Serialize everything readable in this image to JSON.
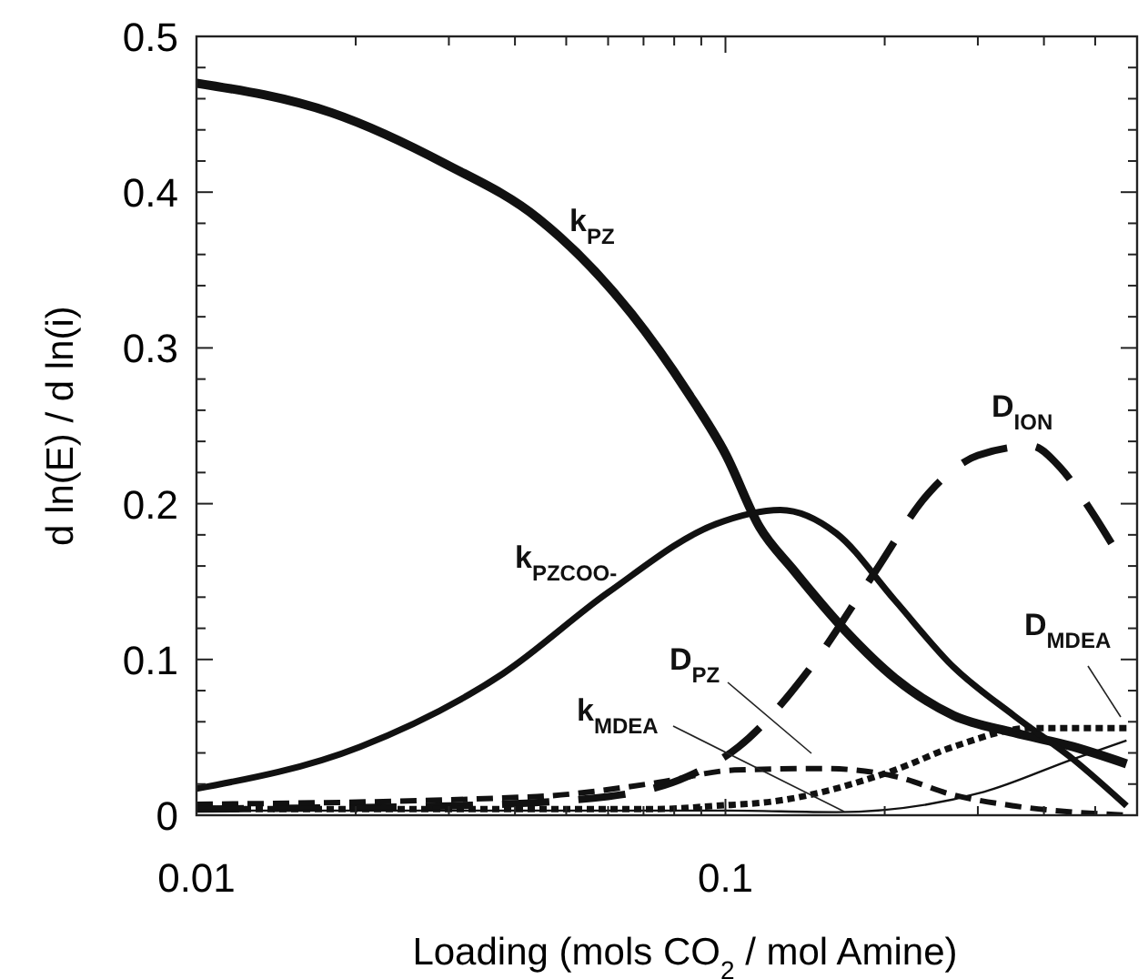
{
  "chart_data": {
    "type": "line",
    "xlabel": "Loading (mols CO$_{2}$ / mol Amine)",
    "ylabel": "d ln(E) / d ln(i)",
    "log": "x",
    "xlim": [
      0.01,
      0.6
    ],
    "ylim": [
      0,
      0.5
    ],
    "xticks": [
      0.01,
      {
        "value": 0.02,
        "label": null
      },
      {
        "value": 0.03,
        "label": null
      },
      {
        "value": 0.04,
        "label": null
      },
      {
        "value": 0.05,
        "label": null
      },
      {
        "value": 0.06,
        "label": null
      },
      {
        "value": 0.07,
        "label": null
      },
      {
        "value": 0.08,
        "label": null
      },
      {
        "value": 0.09,
        "label": null
      },
      0.1,
      {
        "value": 0.2,
        "label": null
      },
      {
        "value": 0.3,
        "label": null
      },
      {
        "value": 0.4,
        "label": null
      },
      {
        "value": 0.5,
        "label": null
      }
    ],
    "yticks": [
      0,
      {
        "value": 0.02,
        "label": null
      },
      {
        "value": 0.04,
        "label": null
      },
      {
        "value": 0.06,
        "label": null
      },
      {
        "value": 0.08,
        "label": null
      },
      0.1,
      {
        "value": 0.12,
        "label": null
      },
      {
        "value": 0.14,
        "label": null
      },
      {
        "value": 0.16,
        "label": null
      },
      {
        "value": 0.18,
        "label": null
      },
      0.2,
      {
        "value": 0.22,
        "label": null
      },
      {
        "value": 0.24,
        "label": null
      },
      {
        "value": 0.26,
        "label": null
      },
      {
        "value": 0.28,
        "label": null
      },
      0.3,
      {
        "value": 0.32,
        "label": null
      },
      {
        "value": 0.34,
        "label": null
      },
      {
        "value": 0.36,
        "label": null
      },
      {
        "value": 0.38,
        "label": null
      },
      0.4,
      {
        "value": 0.42,
        "label": null
      },
      {
        "value": 0.44,
        "label": null
      },
      {
        "value": 0.46,
        "label": null
      },
      {
        "value": 0.48,
        "label": null
      },
      0.5
    ],
    "marker": "none",
    "series": [
      {
        "name": "k$_{PZ}$",
        "color": "#111111",
        "line_style": "solid",
        "x": [
          0.01,
          0.018,
          0.0296,
          0.0443,
          0.0664,
          0.085,
          0.1,
          0.116,
          0.134,
          0.169,
          0.209,
          0.27,
          0.351,
          0.454,
          0.573
        ],
        "values": [
          0.47,
          0.451,
          0.418,
          0.383,
          0.322,
          0.271,
          0.232,
          0.185,
          0.158,
          0.118,
          0.088,
          0.064,
          0.053,
          0.044,
          0.033
        ]
      },
      {
        "name": "k$_{PZCOO-}$",
        "color": "#111111",
        "line_style": "solid",
        "x": [
          0.01,
          0.0204,
          0.038,
          0.06,
          0.096,
          0.127,
          0.162,
          0.209,
          0.27,
          0.351,
          0.454,
          0.573
        ],
        "values": [
          0.017,
          0.044,
          0.091,
          0.143,
          0.187,
          0.196,
          0.181,
          0.138,
          0.095,
          0.064,
          0.036,
          0.006
        ]
      },
      {
        "name": "D$_{ION}$",
        "color": "#111111",
        "line_style": "dashed",
        "x": [
          0.01,
          0.03,
          0.06,
          0.085,
          0.106,
          0.145,
          0.189,
          0.244,
          0.3,
          0.379,
          0.43,
          0.49,
          0.558
        ],
        "values": [
          0.004,
          0.006,
          0.012,
          0.025,
          0.044,
          0.095,
          0.153,
          0.208,
          0.231,
          0.237,
          0.223,
          0.196,
          0.165
        ]
      },
      {
        "name": "D$_{PZ}$",
        "color": "#111111",
        "line_style": "dashed",
        "x": [
          0.01,
          0.044,
          0.0745,
          0.104,
          0.153,
          0.209,
          0.27,
          0.351,
          0.573
        ],
        "values": [
          0.007,
          0.012,
          0.021,
          0.029,
          0.03,
          0.025,
          0.013,
          0.006,
          0.0
        ]
      },
      {
        "name": "D$_{MDEA}$",
        "color": "#111111",
        "line_style": "dotted",
        "x": [
          0.01,
          0.0745,
          0.0955,
          0.124,
          0.209,
          0.27,
          0.379,
          0.573
        ],
        "values": [
          0.004,
          0.004,
          0.006,
          0.009,
          0.029,
          0.044,
          0.056,
          0.056
        ]
      },
      {
        "name": "k$_{MDEA}$",
        "color": "#111111",
        "line_style": "solid",
        "x": [
          0.01,
          0.05,
          0.1,
          0.162,
          0.308,
          0.454,
          0.573
        ],
        "values": [
          0.003,
          0.003,
          0.003,
          0.002,
          0.015,
          0.036,
          0.048
        ]
      }
    ]
  }
}
